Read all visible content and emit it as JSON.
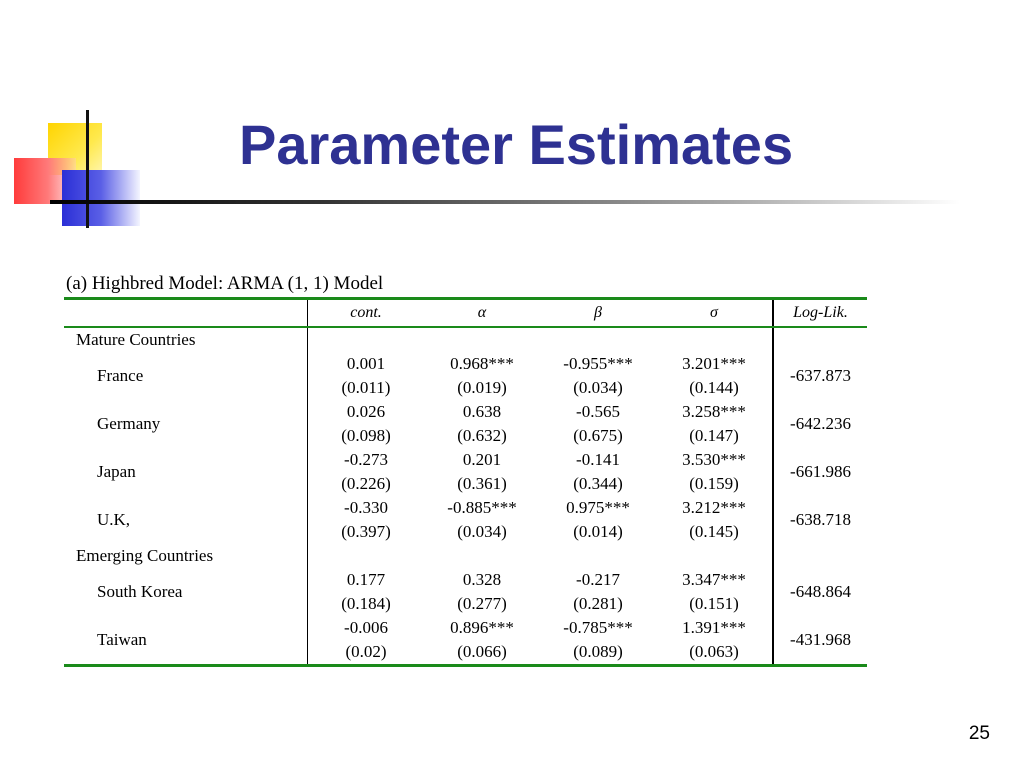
{
  "slide": {
    "title": "Parameter Estimates",
    "caption": "(a) Highbred Model: ARMA (1, 1) Model",
    "page_number": "25"
  },
  "table": {
    "headers": [
      "cont.",
      "α",
      "β",
      "σ",
      "Log-Lik."
    ],
    "groups": [
      {
        "label": "Mature Countries",
        "rows": [
          {
            "country": "France",
            "est": [
              "0.001",
              "0.968***",
              "-0.955***",
              "3.201***"
            ],
            "se": [
              "(0.011)",
              "(0.019)",
              "(0.034)",
              "(0.144)"
            ],
            "loglik": "-637.873"
          },
          {
            "country": "Germany",
            "est": [
              "0.026",
              "0.638",
              "-0.565",
              "3.258***"
            ],
            "se": [
              "(0.098)",
              "(0.632)",
              "(0.675)",
              "(0.147)"
            ],
            "loglik": "-642.236"
          },
          {
            "country": "Japan",
            "est": [
              "-0.273",
              "0.201",
              "-0.141",
              "3.530***"
            ],
            "se": [
              "(0.226)",
              "(0.361)",
              "(0.344)",
              "(0.159)"
            ],
            "loglik": "-661.986"
          },
          {
            "country": "U.K,",
            "est": [
              "-0.330",
              "-0.885***",
              "0.975***",
              "3.212***"
            ],
            "se": [
              "(0.397)",
              "(0.034)",
              "(0.014)",
              "(0.145)"
            ],
            "loglik": "-638.718"
          }
        ]
      },
      {
        "label": "Emerging Countries",
        "rows": [
          {
            "country": "South Korea",
            "est": [
              "0.177",
              "0.328",
              "-0.217",
              "3.347***"
            ],
            "se": [
              "(0.184)",
              "(0.277)",
              "(0.281)",
              "(0.151)"
            ],
            "loglik": "-648.864"
          },
          {
            "country": "Taiwan",
            "est": [
              "-0.006",
              "0.896***",
              "-0.785***",
              "1.391***"
            ],
            "se": [
              "(0.02)",
              "(0.066)",
              "(0.089)",
              "(0.063)"
            ],
            "loglik": "-431.968"
          }
        ]
      }
    ]
  },
  "colors": {
    "title": "#2e3192",
    "rule": "#1a8a1a"
  }
}
